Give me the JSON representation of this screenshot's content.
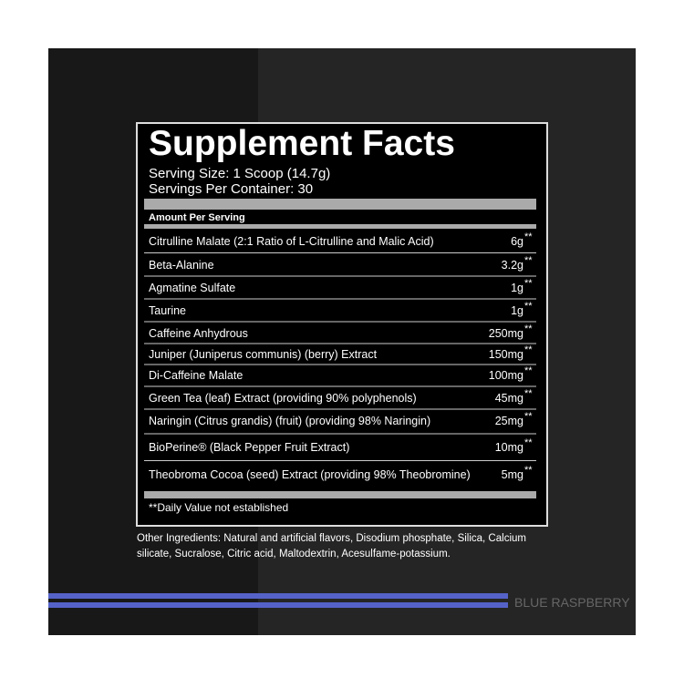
{
  "label": {
    "title": "Supplement Facts",
    "serving_size": "Serving Size: 1 Scoop (14.7g)",
    "servings_per_container": "Servings Per Container: 30",
    "amount_header": "Amount Per Serving",
    "rows": [
      {
        "name": "Citrulline Malate (2:1 Ratio of L-Citrulline and Malic Acid)",
        "amount": "6g",
        "mark": "**"
      },
      {
        "name": "Beta-Alanine",
        "amount": "3.2g",
        "mark": "**"
      },
      {
        "name": "Agmatine Sulfate",
        "amount": "1g",
        "mark": "**"
      },
      {
        "name": "Taurine",
        "amount": "1g",
        "mark": "**"
      },
      {
        "name": "Caffeine Anhydrous",
        "amount": "250mg",
        "mark": "**"
      },
      {
        "name": "Juniper (Juniperus communis) (berry) Extract",
        "amount": "150mg",
        "mark": "**"
      },
      {
        "name": "Di-Caffeine Malate",
        "amount": "100mg",
        "mark": "**"
      },
      {
        "name": "Green Tea (leaf) Extract (providing 90% polyphenols)",
        "amount": "45mg",
        "mark": "**"
      },
      {
        "name": "Naringin (Citrus grandis) (fruit) (providing 98% Naringin)",
        "amount": "25mg",
        "mark": "**"
      },
      {
        "name": "BioPerine® (Black Pepper Fruit Extract)",
        "amount": "10mg",
        "mark": "**"
      },
      {
        "name": "Theobroma Cocoa (seed) Extract (providing 98% Theobromine)",
        "amount": "5mg",
        "mark": "**"
      }
    ],
    "footnote": "**Daily Value not established",
    "other_ingredients": [
      "Other Ingredients: Natural and artificial flavors, Disodium phosphate, Silica, Calcium",
      "silicate, Sucralose, Citric acid, Maltodextrin, Acesulfame-potassium."
    ],
    "flavor": "BLUE RASPBERRY"
  }
}
